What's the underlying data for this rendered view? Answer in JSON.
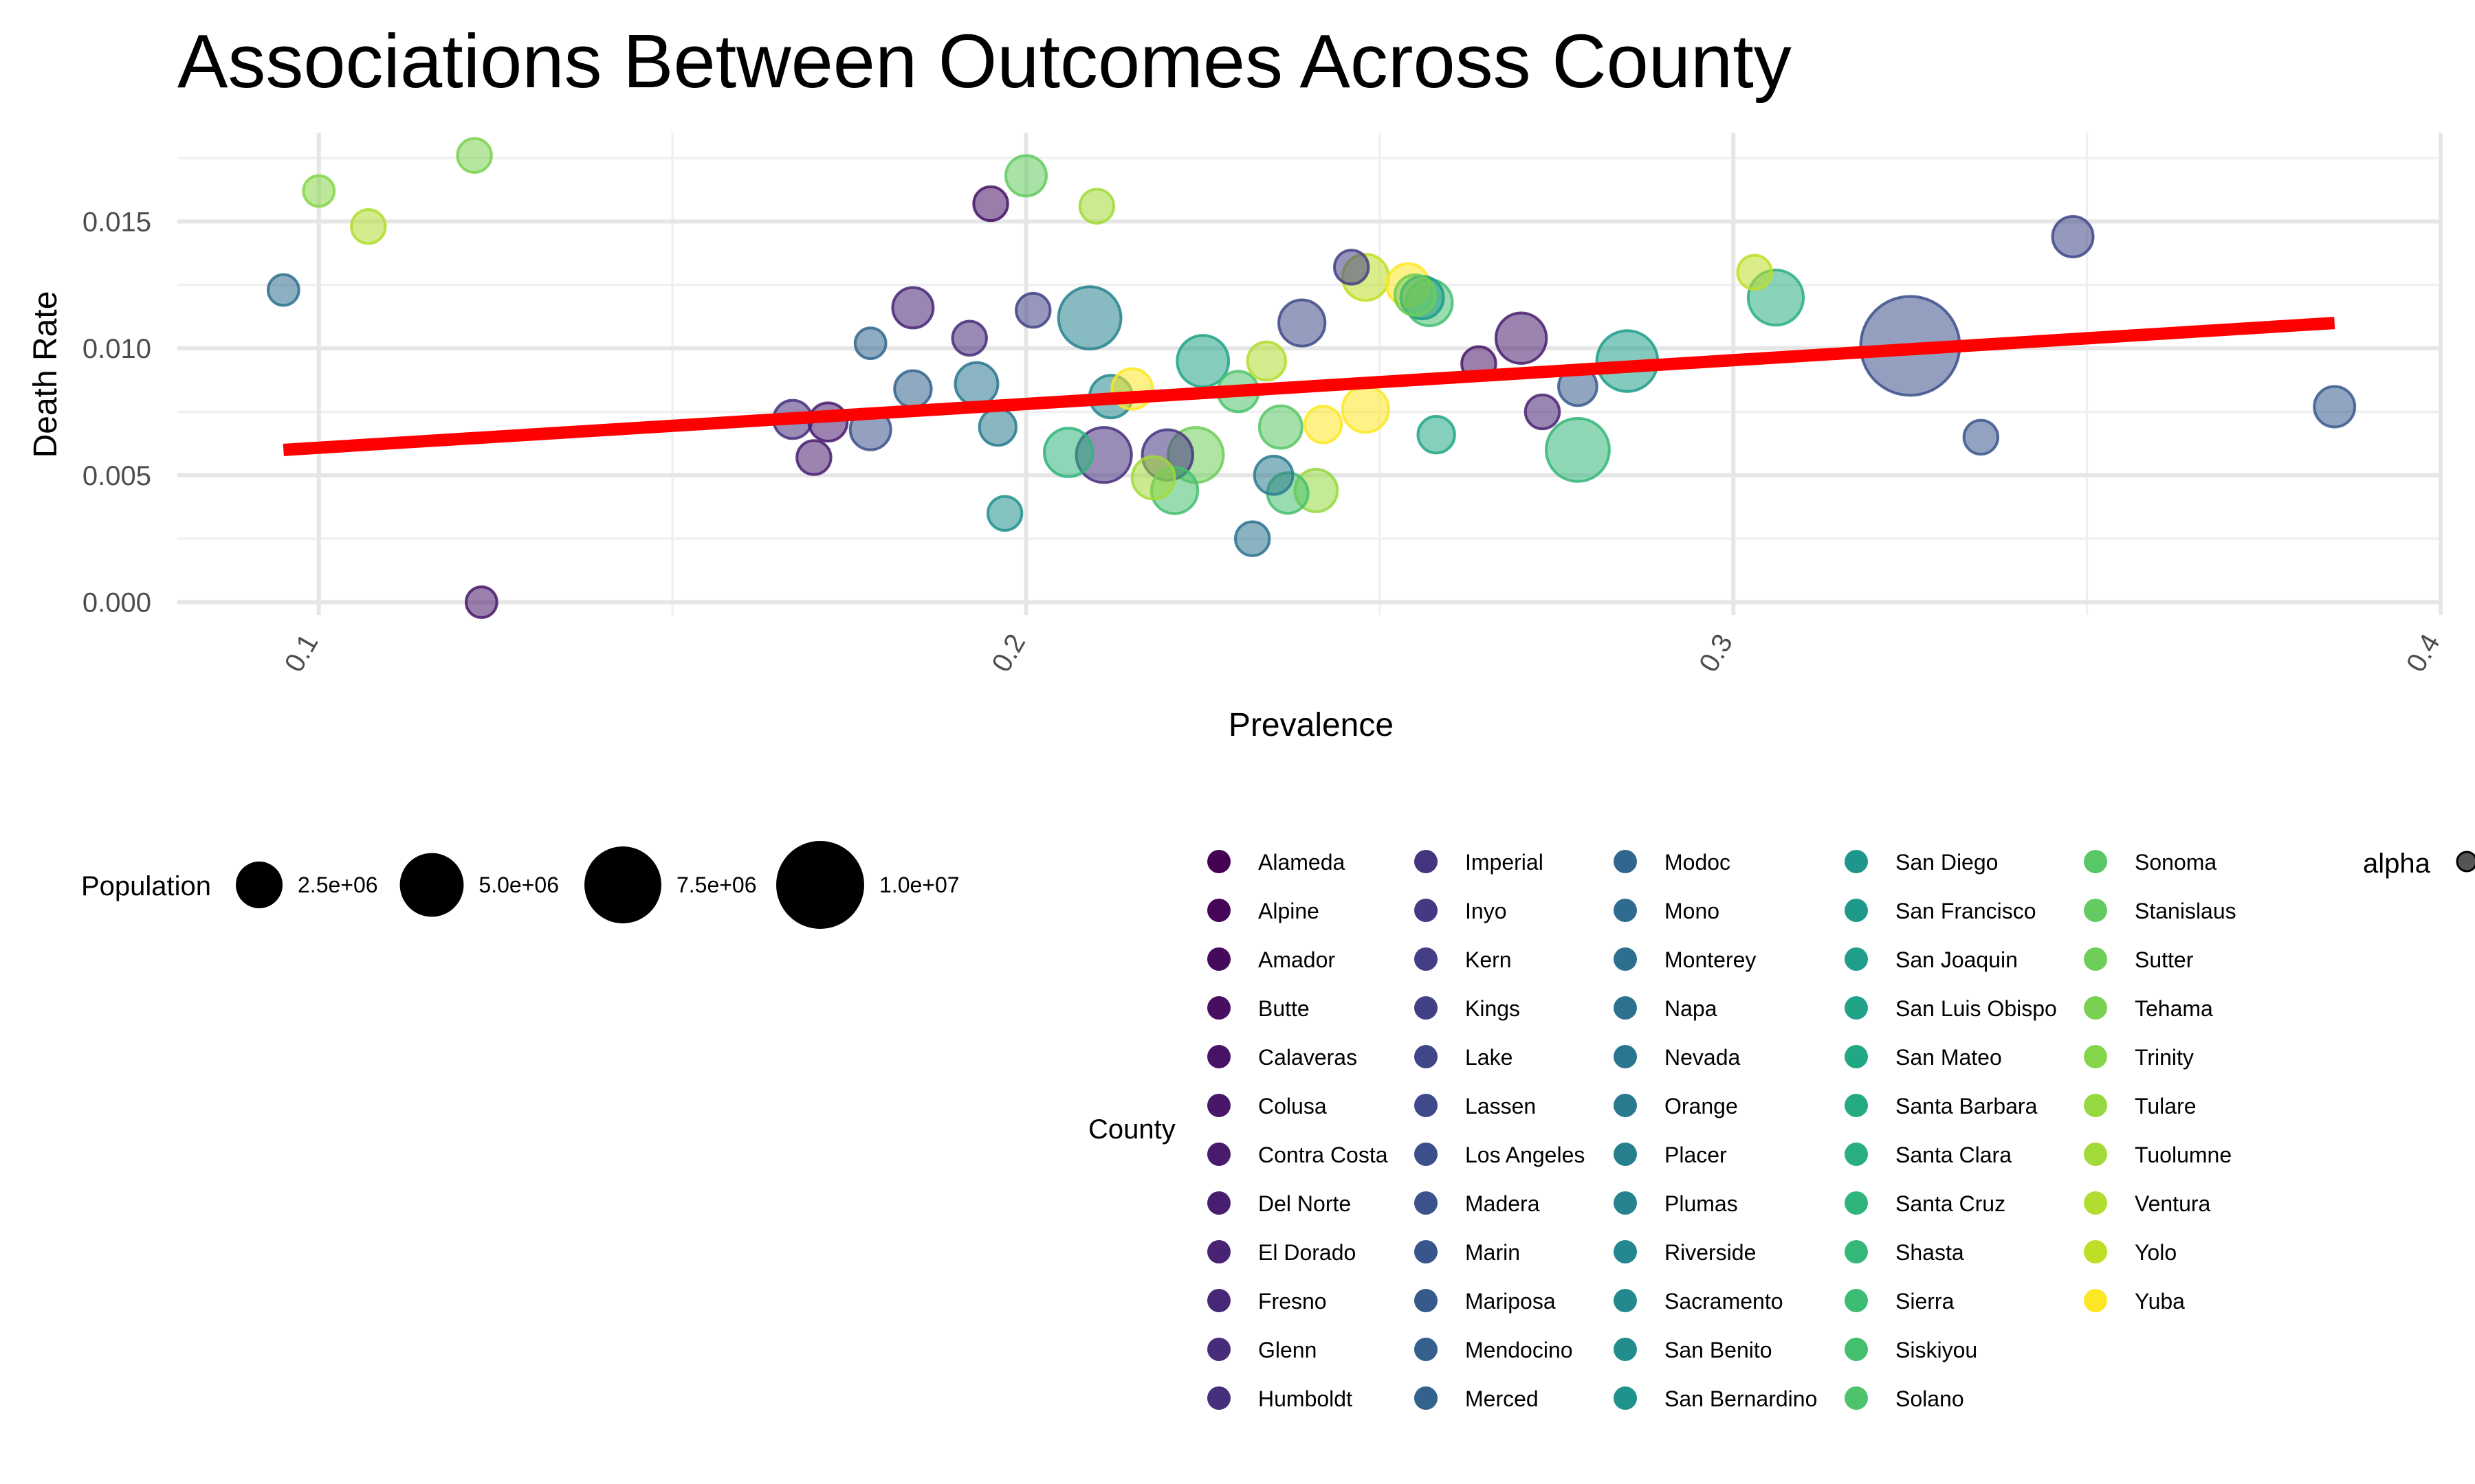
{
  "chart_data": {
    "type": "scatter",
    "title": "Associations Between Outcomes Across County",
    "xlabel": "Prevalence",
    "ylabel": "Death Rate",
    "xlim": [
      0.08,
      0.4
    ],
    "ylim": [
      -0.0005,
      0.0185
    ],
    "x_ticks": [
      0.1,
      0.2,
      0.3,
      0.4
    ],
    "x_tick_labels": [
      "0.1",
      "0.2",
      "0.3",
      "0.4"
    ],
    "y_ticks": [
      0,
      0.005,
      0.01,
      0.015
    ],
    "y_tick_labels": [
      "0.000",
      "0.005",
      "0.010",
      "0.015"
    ],
    "grid": true,
    "trend_line": {
      "color": "#ff0000",
      "x": [
        0.095,
        0.385
      ],
      "y": [
        0.006,
        0.011
      ]
    },
    "size_legend": {
      "title": "Population",
      "values": [
        2500000,
        5000000,
        7500000,
        10000000
      ],
      "labels": [
        "2.5e+06",
        "5.0e+06",
        "7.5e+06",
        "1.0e+07"
      ]
    },
    "color_legend": {
      "title": "County",
      "items": [
        {
          "label": "Alameda",
          "color": "#440154"
        },
        {
          "label": "Alpine",
          "color": "#450559"
        },
        {
          "label": "Amador",
          "color": "#460a5d"
        },
        {
          "label": "Butte",
          "color": "#470e61"
        },
        {
          "label": "Calaveras",
          "color": "#471365"
        },
        {
          "label": "Colusa",
          "color": "#481769"
        },
        {
          "label": "Contra Costa",
          "color": "#481b6d"
        },
        {
          "label": "Del Norte",
          "color": "#481f70"
        },
        {
          "label": "El Dorado",
          "color": "#482374"
        },
        {
          "label": "Fresno",
          "color": "#472777"
        },
        {
          "label": "Glenn",
          "color": "#472c7a"
        },
        {
          "label": "Humboldt",
          "color": "#46307e"
        },
        {
          "label": "Imperial",
          "color": "#453581"
        },
        {
          "label": "Inyo",
          "color": "#443983"
        },
        {
          "label": "Kern",
          "color": "#433e85"
        },
        {
          "label": "Kings",
          "color": "#424186"
        },
        {
          "label": "Lake",
          "color": "#404688"
        },
        {
          "label": "Lassen",
          "color": "#3e4a89"
        },
        {
          "label": "Los Angeles",
          "color": "#3c4f8a"
        },
        {
          "label": "Madera",
          "color": "#3b528b"
        },
        {
          "label": "Marin",
          "color": "#39568c"
        },
        {
          "label": "Mariposa",
          "color": "#375a8c"
        },
        {
          "label": "Mendocino",
          "color": "#355f8d"
        },
        {
          "label": "Merced",
          "color": "#33638d"
        },
        {
          "label": "Modoc",
          "color": "#31668e"
        },
        {
          "label": "Mono",
          "color": "#2f6b8e"
        },
        {
          "label": "Monterey",
          "color": "#2d6f8e"
        },
        {
          "label": "Napa",
          "color": "#2c728e"
        },
        {
          "label": "Nevada",
          "color": "#2a768e"
        },
        {
          "label": "Orange",
          "color": "#297a8e"
        },
        {
          "label": "Placer",
          "color": "#277f8e"
        },
        {
          "label": "Plumas",
          "color": "#26828e"
        },
        {
          "label": "Riverside",
          "color": "#24868e"
        },
        {
          "label": "Sacramento",
          "color": "#23898e"
        },
        {
          "label": "San Benito",
          "color": "#218e8d"
        },
        {
          "label": "San Bernardino",
          "color": "#20928c"
        },
        {
          "label": "San Diego",
          "color": "#1f968b"
        },
        {
          "label": "San Francisco",
          "color": "#1f9a8a"
        },
        {
          "label": "San Joaquin",
          "color": "#1f9e89"
        },
        {
          "label": "San Luis Obispo",
          "color": "#20a386"
        },
        {
          "label": "San Mateo",
          "color": "#22a785"
        },
        {
          "label": "Santa Barbara",
          "color": "#25ab82"
        },
        {
          "label": "Santa Clara",
          "color": "#29af7f"
        },
        {
          "label": "Santa Cruz",
          "color": "#2fb47c"
        },
        {
          "label": "Shasta",
          "color": "#35b779"
        },
        {
          "label": "Sierra",
          "color": "#3dbc74"
        },
        {
          "label": "Siskiyou",
          "color": "#44bf70"
        },
        {
          "label": "Solano",
          "color": "#4ec36b"
        },
        {
          "label": "Sonoma",
          "color": "#58c765"
        },
        {
          "label": "Stanislaus",
          "color": "#63cb5f"
        },
        {
          "label": "Sutter",
          "color": "#6ece58"
        },
        {
          "label": "Tehama",
          "color": "#7ad151"
        },
        {
          "label": "Trinity",
          "color": "#86d549"
        },
        {
          "label": "Tulare",
          "color": "#95d840"
        },
        {
          "label": "Tuolumne",
          "color": "#a2da37"
        },
        {
          "label": "Ventura",
          "color": "#b0dd2f"
        },
        {
          "label": "Yolo",
          "color": "#bddf26"
        },
        {
          "label": "Yuba",
          "color": "#fde725"
        }
      ]
    },
    "alpha_legend": {
      "title": "alpha"
    },
    "points": [
      {
        "x": 0.095,
        "y": 0.0123,
        "pop": 300000,
        "color": "#2d6f8e"
      },
      {
        "x": 0.1,
        "y": 0.0162,
        "pop": 300000,
        "color": "#86d549"
      },
      {
        "x": 0.107,
        "y": 0.0148,
        "pop": 450000,
        "color": "#b0dd2f"
      },
      {
        "x": 0.122,
        "y": 0.0176,
        "pop": 450000,
        "color": "#7ad151"
      },
      {
        "x": 0.123,
        "y": 0.0,
        "pop": 300000,
        "color": "#481769"
      },
      {
        "x": 0.167,
        "y": 0.0072,
        "pop": 700000,
        "color": "#46307e"
      },
      {
        "x": 0.17,
        "y": 0.0057,
        "pop": 450000,
        "color": "#481f70"
      },
      {
        "x": 0.172,
        "y": 0.0071,
        "pop": 700000,
        "color": "#481b6d"
      },
      {
        "x": 0.178,
        "y": 0.0102,
        "pop": 300000,
        "color": "#31668e"
      },
      {
        "x": 0.178,
        "y": 0.0068,
        "pop": 850000,
        "color": "#3b528b"
      },
      {
        "x": 0.184,
        "y": 0.0116,
        "pop": 850000,
        "color": "#482374"
      },
      {
        "x": 0.184,
        "y": 0.0084,
        "pop": 600000,
        "color": "#33638d"
      },
      {
        "x": 0.192,
        "y": 0.0104,
        "pop": 450000,
        "color": "#472c7a"
      },
      {
        "x": 0.193,
        "y": 0.0086,
        "pop": 1000000,
        "color": "#2a768e"
      },
      {
        "x": 0.195,
        "y": 0.0157,
        "pop": 450000,
        "color": "#471365"
      },
      {
        "x": 0.196,
        "y": 0.0069,
        "pop": 600000,
        "color": "#297a8e"
      },
      {
        "x": 0.197,
        "y": 0.0035,
        "pop": 450000,
        "color": "#20928c"
      },
      {
        "x": 0.2,
        "y": 0.0168,
        "pop": 850000,
        "color": "#63cb5f"
      },
      {
        "x": 0.201,
        "y": 0.0115,
        "pop": 450000,
        "color": "#424186"
      },
      {
        "x": 0.206,
        "y": 0.0059,
        "pop": 1500000,
        "color": "#2fb47c"
      },
      {
        "x": 0.21,
        "y": 0.0156,
        "pop": 450000,
        "color": "#a2da37"
      },
      {
        "x": 0.209,
        "y": 0.0112,
        "pop": 3100000,
        "color": "#26828e"
      },
      {
        "x": 0.211,
        "y": 0.0058,
        "pop": 2200000,
        "color": "#46307e"
      },
      {
        "x": 0.212,
        "y": 0.0081,
        "pop": 1000000,
        "color": "#23898e"
      },
      {
        "x": 0.215,
        "y": 0.0084,
        "pop": 850000,
        "color": "#fde725"
      },
      {
        "x": 0.218,
        "y": 0.0049,
        "pop": 1000000,
        "color": "#a2da37"
      },
      {
        "x": 0.22,
        "y": 0.0058,
        "pop": 1700000,
        "color": "#453581"
      },
      {
        "x": 0.221,
        "y": 0.0044,
        "pop": 1300000,
        "color": "#44bf70"
      },
      {
        "x": 0.224,
        "y": 0.0058,
        "pop": 2200000,
        "color": "#6ece58"
      },
      {
        "x": 0.225,
        "y": 0.0095,
        "pop": 1800000,
        "color": "#20a386"
      },
      {
        "x": 0.23,
        "y": 0.0083,
        "pop": 850000,
        "color": "#4ec36b"
      },
      {
        "x": 0.232,
        "y": 0.0025,
        "pop": 450000,
        "color": "#2c728e"
      },
      {
        "x": 0.234,
        "y": 0.0095,
        "pop": 700000,
        "color": "#b0dd2f"
      },
      {
        "x": 0.235,
        "y": 0.005,
        "pop": 700000,
        "color": "#297a8e"
      },
      {
        "x": 0.236,
        "y": 0.0069,
        "pop": 1000000,
        "color": "#58c765"
      },
      {
        "x": 0.237,
        "y": 0.0043,
        "pop": 850000,
        "color": "#44bf70"
      },
      {
        "x": 0.239,
        "y": 0.011,
        "pop": 1300000,
        "color": "#3e4a89"
      },
      {
        "x": 0.241,
        "y": 0.0044,
        "pop": 1000000,
        "color": "#95d840"
      },
      {
        "x": 0.242,
        "y": 0.007,
        "pop": 600000,
        "color": "#fde725"
      },
      {
        "x": 0.246,
        "y": 0.0132,
        "pop": 450000,
        "color": "#433e85"
      },
      {
        "x": 0.248,
        "y": 0.0128,
        "pop": 1300000,
        "color": "#bddf26"
      },
      {
        "x": 0.248,
        "y": 0.0076,
        "pop": 1300000,
        "color": "#fde725"
      },
      {
        "x": 0.254,
        "y": 0.0125,
        "pop": 1000000,
        "color": "#fde725"
      },
      {
        "x": 0.255,
        "y": 0.0121,
        "pop": 850000,
        "color": "#6ece58"
      },
      {
        "x": 0.256,
        "y": 0.012,
        "pop": 1000000,
        "color": "#1f9a8a"
      },
      {
        "x": 0.257,
        "y": 0.0118,
        "pop": 1300000,
        "color": "#44bf70"
      },
      {
        "x": 0.258,
        "y": 0.0066,
        "pop": 600000,
        "color": "#22a785"
      },
      {
        "x": 0.264,
        "y": 0.0094,
        "pop": 450000,
        "color": "#481769"
      },
      {
        "x": 0.27,
        "y": 0.0104,
        "pop": 1700000,
        "color": "#481f70"
      },
      {
        "x": 0.273,
        "y": 0.0075,
        "pop": 450000,
        "color": "#482374"
      },
      {
        "x": 0.278,
        "y": 0.0085,
        "pop": 700000,
        "color": "#375a8c"
      },
      {
        "x": 0.278,
        "y": 0.006,
        "pop": 3200000,
        "color": "#35b779"
      },
      {
        "x": 0.285,
        "y": 0.0095,
        "pop": 2900000,
        "color": "#1f9e89"
      },
      {
        "x": 0.303,
        "y": 0.013,
        "pop": 450000,
        "color": "#bddf26"
      },
      {
        "x": 0.306,
        "y": 0.012,
        "pop": 2200000,
        "color": "#29af7f"
      },
      {
        "x": 0.325,
        "y": 0.0101,
        "pop": 10000000,
        "color": "#3c4f8a"
      },
      {
        "x": 0.335,
        "y": 0.0065,
        "pop": 450000,
        "color": "#39568c"
      },
      {
        "x": 0.348,
        "y": 0.0144,
        "pop": 850000,
        "color": "#404688"
      },
      {
        "x": 0.385,
        "y": 0.0077,
        "pop": 850000,
        "color": "#375a8c"
      }
    ]
  }
}
